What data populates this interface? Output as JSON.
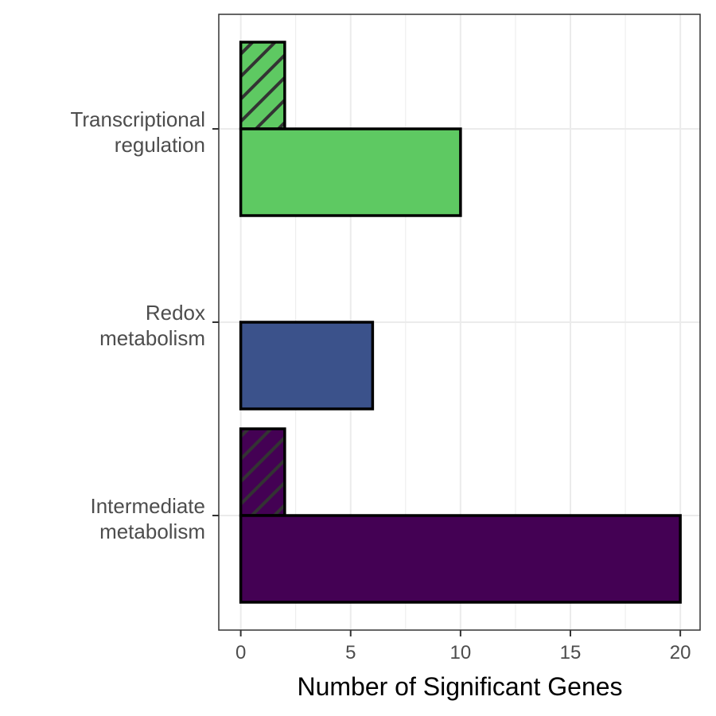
{
  "chart_data": {
    "type": "bar",
    "orientation": "horizontal",
    "xlabel": "Number of Significant Genes",
    "ylabel": "",
    "xlim": [
      -1,
      20.9
    ],
    "x_ticks": [
      0,
      5,
      10,
      15,
      20
    ],
    "grid": true,
    "legend": "none",
    "categories": [
      {
        "lines": [
          "Transcriptional",
          "regulation"
        ],
        "color": "#5EC962"
      },
      {
        "lines": [
          "Redox",
          "metabolism"
        ],
        "color": "#3B528B"
      },
      {
        "lines": [
          "Intermediate",
          "metabolism"
        ],
        "color": "#440154"
      }
    ],
    "bars": [
      {
        "category": 0,
        "slot": "upper",
        "value": 2,
        "hatched": true
      },
      {
        "category": 0,
        "slot": "lower",
        "value": 10,
        "hatched": false
      },
      {
        "category": 1,
        "slot": "upper",
        "value": 0,
        "hatched": true
      },
      {
        "category": 1,
        "slot": "lower",
        "value": 6,
        "hatched": false
      },
      {
        "category": 2,
        "slot": "upper",
        "value": 2,
        "hatched": true
      },
      {
        "category": 2,
        "slot": "lower",
        "value": 20,
        "hatched": false
      }
    ]
  }
}
